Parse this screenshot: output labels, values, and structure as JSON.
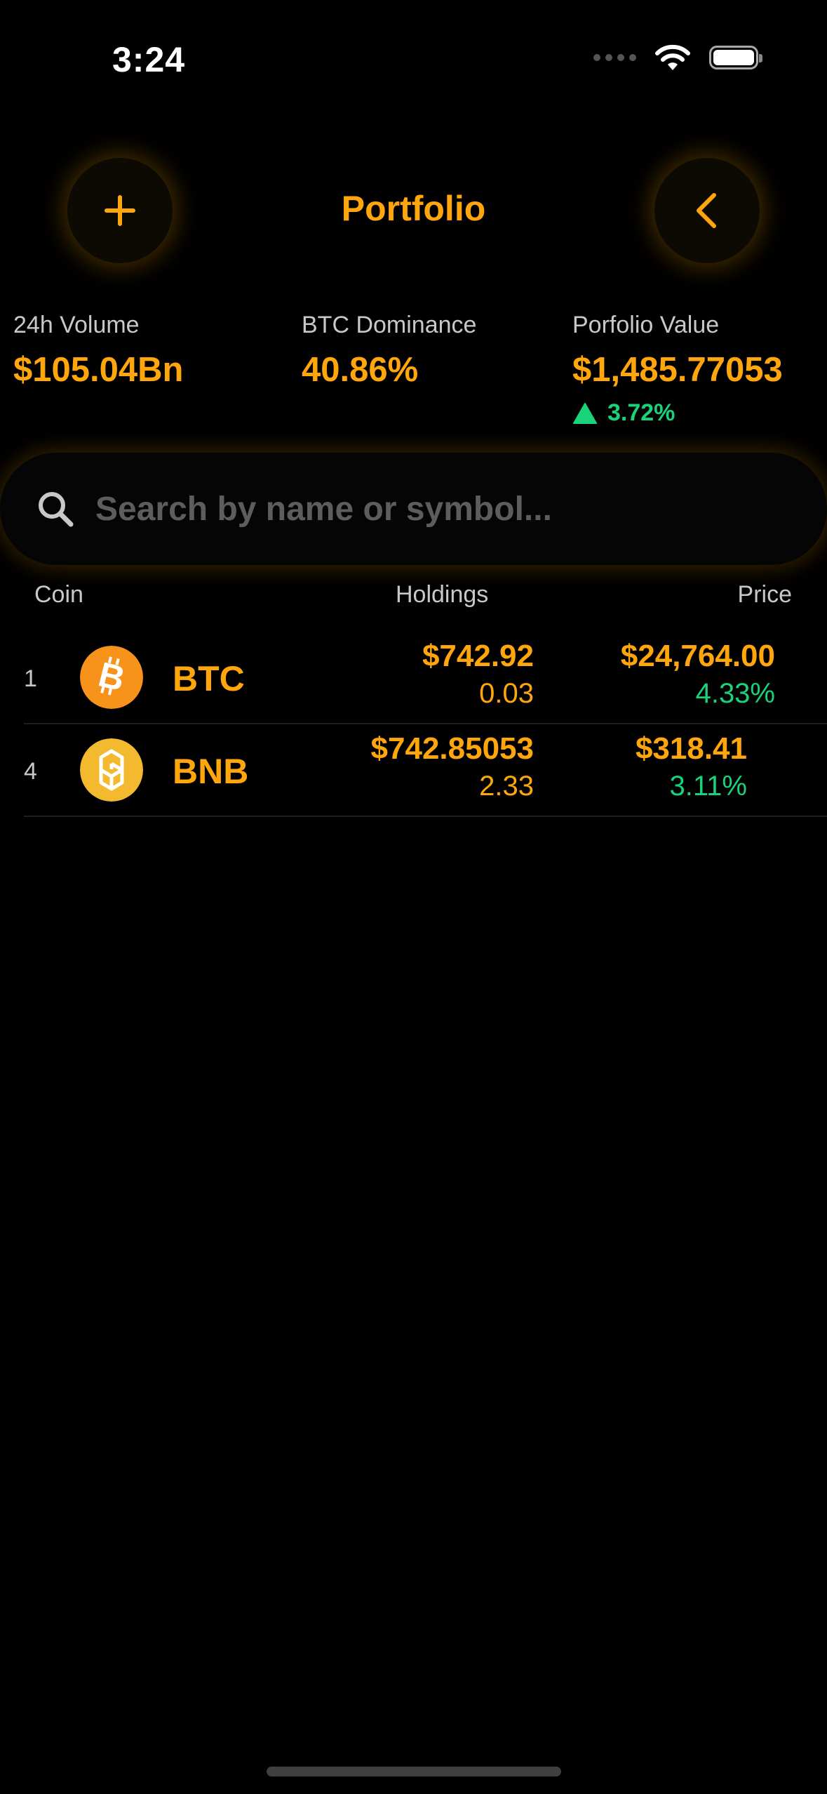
{
  "status_bar": {
    "time": "3:24"
  },
  "header": {
    "title": "Portfolio"
  },
  "stats": [
    {
      "label": "24h Volume",
      "value": "$105.04Bn"
    },
    {
      "label": "BTC Dominance",
      "value": "40.86%"
    },
    {
      "label": "Porfolio Value",
      "value": "$1,485.77053",
      "change": "3.72%"
    }
  ],
  "search": {
    "placeholder": "Search by name or symbol..."
  },
  "columns": {
    "coin": "Coin",
    "holdings": "Holdings",
    "price": "Price"
  },
  "rows": [
    {
      "rank": "1",
      "symbol": "BTC",
      "holdings_value": "$742.92",
      "holdings_qty": "0.03",
      "price": "$24,764.00",
      "change": "4.33%",
      "logo": "btc-icon"
    },
    {
      "rank": "4",
      "symbol": "BNB",
      "holdings_value": "$742.85053",
      "holdings_qty": "2.33",
      "price": "$318.41",
      "change": "3.11%",
      "logo": "bnb-icon"
    }
  ],
  "colors": {
    "accent": "#ffa60d",
    "positive": "#19d27a",
    "btc": "#f7931a",
    "bnb": "#f3ba2f"
  }
}
